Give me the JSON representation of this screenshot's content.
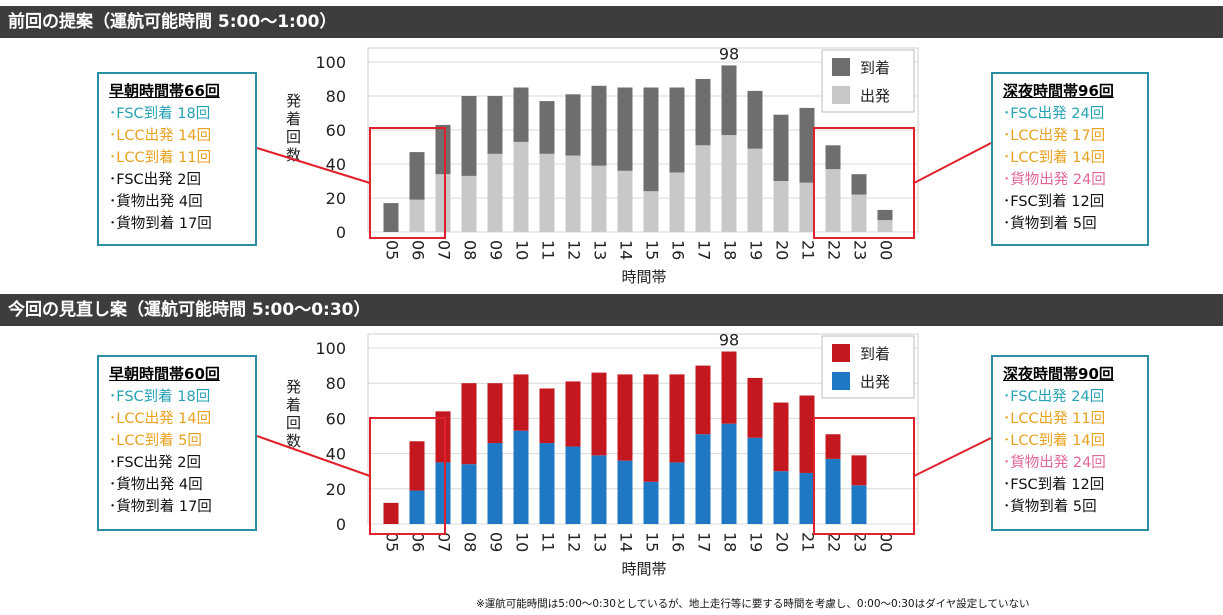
{
  "section1": {
    "header": "前回の提案（運航可能時間 5:00〜1:00）",
    "left_box": {
      "title": "早朝時間帯66回",
      "lines": [
        {
          "text": "･FSC到着 18回",
          "color": "teal"
        },
        {
          "text": "･LCC出発 14回",
          "color": "orange"
        },
        {
          "text": "･LCC到着 11回",
          "color": "orange"
        },
        {
          "text": "･FSC出発 2回",
          "color": "black"
        },
        {
          "text": "･貨物出発 4回",
          "color": "black"
        },
        {
          "text": "･貨物到着 17回",
          "color": "black"
        }
      ]
    },
    "right_box": {
      "title": "深夜時間帯96回",
      "lines": [
        {
          "text": "･FSC出発 24回",
          "color": "teal"
        },
        {
          "text": "･LCC出発 17回",
          "color": "orange"
        },
        {
          "text": "･LCC到着 14回",
          "color": "orange"
        },
        {
          "text": "･貨物出発 24回",
          "color": "pink"
        },
        {
          "text": "･FSC到着 12回",
          "color": "black"
        },
        {
          "text": "･貨物到着 5回",
          "color": "black"
        }
      ]
    }
  },
  "section2": {
    "header": "今回の見直し案（運航可能時間 5:00〜0:30）",
    "left_box": {
      "title": "早朝時間帯60回",
      "lines": [
        {
          "text": "･FSC到着 18回",
          "color": "teal"
        },
        {
          "text": "･LCC出発 14回",
          "color": "orange"
        },
        {
          "text": "･LCC到着 5回",
          "color": "orange"
        },
        {
          "text": "･FSC出発 2回",
          "color": "black"
        },
        {
          "text": "･貨物出発 4回",
          "color": "black"
        },
        {
          "text": "･貨物到着 17回",
          "color": "black"
        }
      ]
    },
    "right_box": {
      "title": "深夜時間帯90回",
      "lines": [
        {
          "text": "･FSC出発 24回",
          "color": "teal"
        },
        {
          "text": "･LCC出発 11回",
          "color": "orange"
        },
        {
          "text": "･LCC到着 14回",
          "color": "orange"
        },
        {
          "text": "･貨物出発 24回",
          "color": "pink"
        },
        {
          "text": "･FSC到着 12回",
          "color": "black"
        },
        {
          "text": "･貨物到着 5回",
          "color": "black"
        }
      ]
    }
  },
  "footnote": "※運航可能時間は5:00〜0:30としているが、地上走行等に要する時間を考慮し、0:00〜0:30はダイヤ設定していない",
  "colors": {
    "teal": "#27a3b6",
    "orange": "#e8a220",
    "pink": "#e2679a",
    "black": "#111111",
    "highlight_red": "#e0202a",
    "callout_border": "#2a8fa3"
  },
  "chart_data": [
    {
      "type": "bar",
      "stacked": true,
      "categories": [
        "05",
        "06",
        "07",
        "08",
        "09",
        "10",
        "11",
        "12",
        "13",
        "14",
        "15",
        "16",
        "17",
        "18",
        "19",
        "20",
        "21",
        "22",
        "23",
        "00"
      ],
      "series": [
        {
          "name": "出発",
          "color": "#c8c8c8",
          "values": [
            0,
            19,
            34,
            33,
            46,
            53,
            46,
            45,
            39,
            36,
            24,
            35,
            51,
            57,
            49,
            30,
            29,
            37,
            22,
            7
          ]
        },
        {
          "name": "到着",
          "color": "#6e6e6e",
          "values": [
            17,
            28,
            29,
            47,
            34,
            32,
            31,
            36,
            47,
            49,
            61,
            50,
            39,
            41,
            34,
            39,
            44,
            14,
            12,
            6
          ]
        }
      ],
      "ylabel": "発着回数",
      "xlabel": "時間帯",
      "ylim": [
        0,
        100
      ],
      "yticks": [
        0,
        20,
        40,
        60,
        80,
        100
      ],
      "grid": true,
      "legend": "top-right",
      "annotation": {
        "category": "18",
        "text": "98"
      }
    },
    {
      "type": "bar",
      "stacked": true,
      "categories": [
        "05",
        "06",
        "07",
        "08",
        "09",
        "10",
        "11",
        "12",
        "13",
        "14",
        "15",
        "16",
        "17",
        "18",
        "19",
        "20",
        "21",
        "22",
        "23",
        "00"
      ],
      "series": [
        {
          "name": "出発",
          "color": "#1f78c4",
          "values": [
            0,
            19,
            35,
            34,
            46,
            53,
            46,
            44,
            39,
            36,
            24,
            35,
            51,
            57,
            49,
            30,
            29,
            37,
            22,
            0
          ]
        },
        {
          "name": "到着",
          "color": "#c41820",
          "values": [
            12,
            28,
            29,
            46,
            34,
            32,
            31,
            37,
            47,
            49,
            61,
            50,
            39,
            41,
            34,
            39,
            44,
            14,
            17,
            0
          ]
        }
      ],
      "ylabel": "発着回数",
      "xlabel": "時間帯",
      "ylim": [
        0,
        100
      ],
      "yticks": [
        0,
        20,
        40,
        60,
        80,
        100
      ],
      "grid": true,
      "legend": "top-right",
      "annotation": {
        "category": "18",
        "text": "98"
      }
    }
  ]
}
